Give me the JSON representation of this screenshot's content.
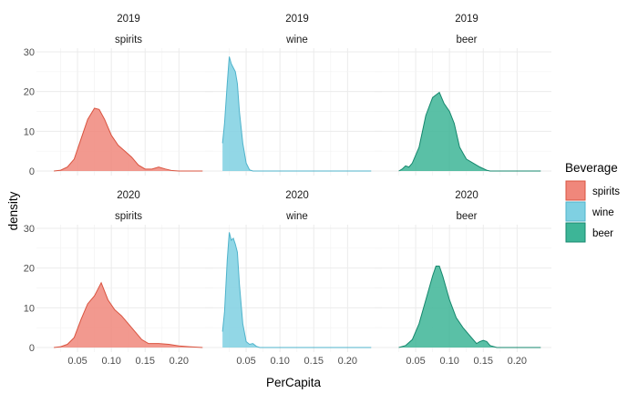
{
  "chart_data": {
    "type": "area",
    "xlabel": "PerCapita",
    "ylabel": "density",
    "xlim": [
      0,
      0.24
    ],
    "ylim": [
      0,
      30
    ],
    "x_ticks": [
      0.05,
      0.1,
      0.15,
      0.2
    ],
    "x_tick_labels": [
      "0.05",
      "0.10",
      "0.15",
      "0.20"
    ],
    "y_ticks": [
      0,
      10,
      20,
      30
    ],
    "y_tick_labels": [
      "0",
      "10",
      "20",
      "30"
    ],
    "grid": true,
    "legend": {
      "title": "Beverage",
      "position": "right",
      "entries": [
        {
          "name": "spirits",
          "fill": "#F0877B",
          "stroke": "#D9533F"
        },
        {
          "name": "wine",
          "fill": "#7FD0E2",
          "stroke": "#4FB3CB"
        },
        {
          "name": "beer",
          "fill": "#3DB597",
          "stroke": "#15876D"
        }
      ]
    },
    "panels": [
      {
        "year": "2019",
        "beverage": "spirits",
        "points": [
          [
            0.015,
            0
          ],
          [
            0.025,
            0.2
          ],
          [
            0.035,
            1
          ],
          [
            0.045,
            3
          ],
          [
            0.055,
            8
          ],
          [
            0.065,
            13
          ],
          [
            0.075,
            15.8
          ],
          [
            0.082,
            15.5
          ],
          [
            0.09,
            13
          ],
          [
            0.1,
            9
          ],
          [
            0.11,
            6.5
          ],
          [
            0.12,
            5
          ],
          [
            0.13,
            3.5
          ],
          [
            0.14,
            1.5
          ],
          [
            0.15,
            0.5
          ],
          [
            0.16,
            0.5
          ],
          [
            0.17,
            1
          ],
          [
            0.18,
            0.5
          ],
          [
            0.19,
            0.1
          ],
          [
            0.2,
            0
          ],
          [
            0.235,
            0
          ]
        ]
      },
      {
        "year": "2019",
        "beverage": "wine",
        "points": [
          [
            0.015,
            7
          ],
          [
            0.018,
            12
          ],
          [
            0.022,
            22
          ],
          [
            0.025,
            28.8
          ],
          [
            0.028,
            27
          ],
          [
            0.031,
            26
          ],
          [
            0.034,
            25
          ],
          [
            0.037,
            22
          ],
          [
            0.04,
            15
          ],
          [
            0.045,
            7
          ],
          [
            0.05,
            2
          ],
          [
            0.055,
            0.3
          ],
          [
            0.06,
            0
          ],
          [
            0.235,
            0
          ]
        ]
      },
      {
        "year": "2019",
        "beverage": "beer",
        "points": [
          [
            0.025,
            0
          ],
          [
            0.03,
            0.5
          ],
          [
            0.035,
            1.3
          ],
          [
            0.04,
            1
          ],
          [
            0.045,
            2
          ],
          [
            0.055,
            6
          ],
          [
            0.065,
            14
          ],
          [
            0.075,
            18.5
          ],
          [
            0.085,
            19.8
          ],
          [
            0.092,
            17
          ],
          [
            0.1,
            15
          ],
          [
            0.107,
            12
          ],
          [
            0.115,
            6
          ],
          [
            0.125,
            3
          ],
          [
            0.135,
            2
          ],
          [
            0.145,
            1
          ],
          [
            0.155,
            0.2
          ],
          [
            0.16,
            0
          ],
          [
            0.235,
            0
          ]
        ]
      },
      {
        "year": "2020",
        "beverage": "spirits",
        "points": [
          [
            0.015,
            0
          ],
          [
            0.025,
            0.2
          ],
          [
            0.035,
            0.8
          ],
          [
            0.045,
            2.5
          ],
          [
            0.055,
            7
          ],
          [
            0.065,
            11
          ],
          [
            0.075,
            13
          ],
          [
            0.085,
            16.3
          ],
          [
            0.095,
            12
          ],
          [
            0.105,
            9.5
          ],
          [
            0.115,
            8
          ],
          [
            0.125,
            6
          ],
          [
            0.135,
            4
          ],
          [
            0.145,
            2
          ],
          [
            0.155,
            1
          ],
          [
            0.17,
            1
          ],
          [
            0.185,
            0.8
          ],
          [
            0.2,
            0.4
          ],
          [
            0.215,
            0.2
          ],
          [
            0.235,
            0
          ]
        ]
      },
      {
        "year": "2020",
        "beverage": "wine",
        "points": [
          [
            0.015,
            4
          ],
          [
            0.018,
            9
          ],
          [
            0.022,
            22
          ],
          [
            0.025,
            29
          ],
          [
            0.028,
            27
          ],
          [
            0.031,
            27.5
          ],
          [
            0.034,
            26
          ],
          [
            0.037,
            24
          ],
          [
            0.04,
            16
          ],
          [
            0.045,
            6
          ],
          [
            0.05,
            1.5
          ],
          [
            0.055,
            0.8
          ],
          [
            0.06,
            1
          ],
          [
            0.065,
            0.3
          ],
          [
            0.07,
            0
          ],
          [
            0.235,
            0
          ]
        ]
      },
      {
        "year": "2020",
        "beverage": "beer",
        "points": [
          [
            0.025,
            0
          ],
          [
            0.035,
            0.5
          ],
          [
            0.045,
            2
          ],
          [
            0.055,
            6
          ],
          [
            0.065,
            12
          ],
          [
            0.075,
            18
          ],
          [
            0.08,
            20.5
          ],
          [
            0.085,
            20.5
          ],
          [
            0.09,
            18
          ],
          [
            0.1,
            12
          ],
          [
            0.11,
            7.5
          ],
          [
            0.12,
            5
          ],
          [
            0.13,
            3
          ],
          [
            0.14,
            1
          ],
          [
            0.145,
            1.5
          ],
          [
            0.15,
            1.8
          ],
          [
            0.155,
            1.5
          ],
          [
            0.16,
            0.5
          ],
          [
            0.17,
            0
          ],
          [
            0.235,
            0
          ]
        ]
      }
    ]
  }
}
